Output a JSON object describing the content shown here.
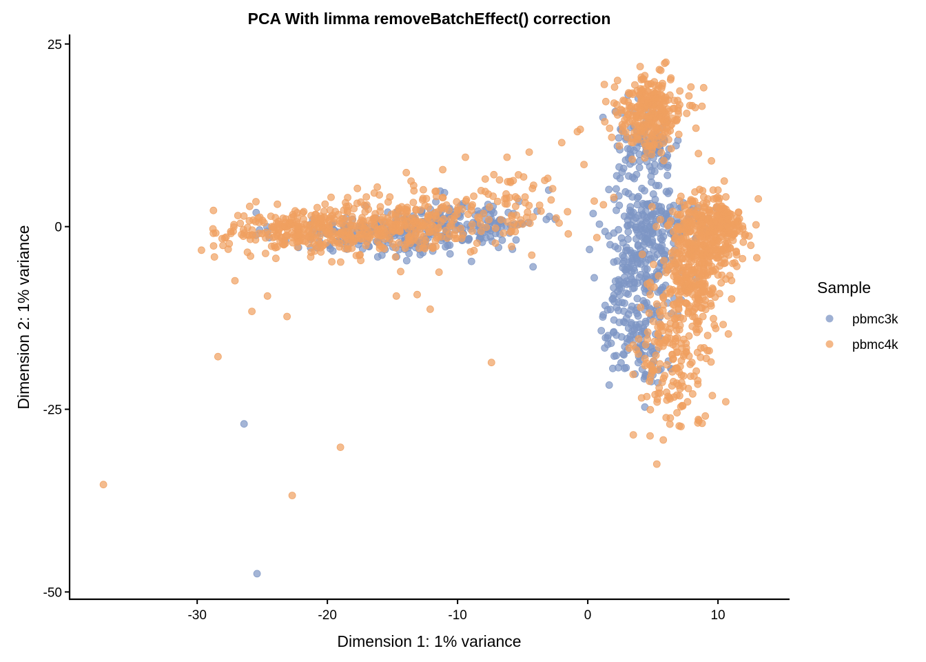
{
  "chart_data": {
    "type": "scatter",
    "title": "PCA With limma removeBatchEffect() correction",
    "xlabel": "Dimension 1: 1% variance",
    "ylabel": "Dimension 2: 1% variance",
    "xlim": [
      -39.8,
      15.5
    ],
    "ylim": [
      -51,
      26.3
    ],
    "xticks": [
      -30,
      -20,
      -10,
      0,
      10
    ],
    "yticks": [
      25,
      0,
      -25,
      -50
    ],
    "xtick_labels": [
      "-30",
      "-20",
      "-10",
      "0",
      "10"
    ],
    "ytick_labels": [
      "25",
      "0",
      "-25",
      "-50"
    ],
    "grid": false,
    "legend": {
      "title": "Sample",
      "position": "right"
    },
    "series": [
      {
        "name": "pbmc3k",
        "color": "#7d96c4",
        "clusters": [
          {
            "cx": -17,
            "cy": -1,
            "sx": 3.5,
            "sy": 1.5,
            "n": 140
          },
          {
            "cx": -11,
            "cy": 0,
            "sx": 2.5,
            "sy": 1.8,
            "n": 140
          },
          {
            "cx": -7,
            "cy": 0.5,
            "sx": 1.5,
            "sy": 1.5,
            "n": 50
          },
          {
            "cx": 4.5,
            "cy": 11,
            "sx": 1.3,
            "sy": 2.5,
            "n": 110
          },
          {
            "cx": 4.2,
            "cy": -3,
            "sx": 1.4,
            "sy": 4.5,
            "n": 230
          },
          {
            "cx": 3.5,
            "cy": -13,
            "sx": 1.2,
            "sy": 3.5,
            "n": 110
          },
          {
            "cx": 6.5,
            "cy": 1,
            "sx": 1.5,
            "sy": 1.5,
            "n": 70
          },
          {
            "cx": 4.5,
            "cy": -20,
            "sx": 1.2,
            "sy": 2,
            "n": 25
          }
        ],
        "outliers": [
          [
            -26.4,
            -27
          ],
          [
            -25.4,
            -47.5
          ],
          [
            -4.2,
            -5.5
          ],
          [
            -7.5,
            0.5
          ],
          [
            -15,
            -1
          ],
          [
            -3,
            5
          ],
          [
            0.5,
            -7
          ],
          [
            -2.5,
            1
          ]
        ]
      },
      {
        "name": "pbmc4k",
        "color": "#f0a060",
        "clusters": [
          {
            "cx": -21,
            "cy": -0.5,
            "sx": 3.5,
            "sy": 1.6,
            "n": 320
          },
          {
            "cx": -13,
            "cy": 0.5,
            "sx": 2.8,
            "sy": 2.2,
            "n": 200
          },
          {
            "cx": -6,
            "cy": 3,
            "sx": 1.8,
            "sy": 2.5,
            "n": 60
          },
          {
            "cx": 4.8,
            "cy": 15.5,
            "sx": 1.3,
            "sy": 2.5,
            "n": 280
          },
          {
            "cx": 9,
            "cy": -1,
            "sx": 1.5,
            "sy": 2.8,
            "n": 320
          },
          {
            "cx": 8,
            "cy": -8,
            "sx": 1.3,
            "sy": 3,
            "n": 220
          },
          {
            "cx": 6.5,
            "cy": -17,
            "sx": 1.3,
            "sy": 3,
            "n": 110
          },
          {
            "cx": 6.5,
            "cy": -23,
            "sx": 1.3,
            "sy": 2.3,
            "n": 45
          },
          {
            "cx": 10.5,
            "cy": 1,
            "sx": 0.8,
            "sy": 1.5,
            "n": 50
          }
        ],
        "outliers": [
          [
            -37.2,
            -35.3
          ],
          [
            -28.4,
            -17.8
          ],
          [
            -22.7,
            -36.8
          ],
          [
            -19,
            -30.2
          ],
          [
            -25.8,
            -11.6
          ],
          [
            -24.6,
            -9.5
          ],
          [
            -23.1,
            -12.3
          ],
          [
            -27.1,
            -7.4
          ],
          [
            -7.4,
            -18.6
          ],
          [
            -12.1,
            -11.3
          ],
          [
            -14.7,
            -9.5
          ],
          [
            -13.1,
            -9.3
          ],
          [
            -4.3,
            -3.9
          ],
          [
            -9.4,
            9.5
          ],
          [
            -6.2,
            9.5
          ],
          [
            -4.5,
            10.2
          ],
          [
            -2,
            11.5
          ],
          [
            -0.8,
            13
          ],
          [
            -1.5,
            -1
          ],
          [
            0.5,
            3.5
          ],
          [
            1.2,
            3
          ],
          [
            -2.7,
            5.2
          ],
          [
            -2.2,
            0.5
          ],
          [
            0.7,
            -1.5
          ],
          [
            5.3,
            -32.5
          ],
          [
            5.8,
            -29.2
          ],
          [
            3.5,
            -28.5
          ],
          [
            13.1,
            3.8
          ],
          [
            11.4,
            -3.5
          ],
          [
            10.4,
            -13.4
          ],
          [
            7.6,
            15.5
          ],
          [
            8.5,
            10
          ],
          [
            9.5,
            9
          ],
          [
            5.5,
            21.5
          ],
          [
            6,
            22.5
          ],
          [
            2,
            4
          ],
          [
            10,
            5
          ]
        ]
      }
    ]
  }
}
